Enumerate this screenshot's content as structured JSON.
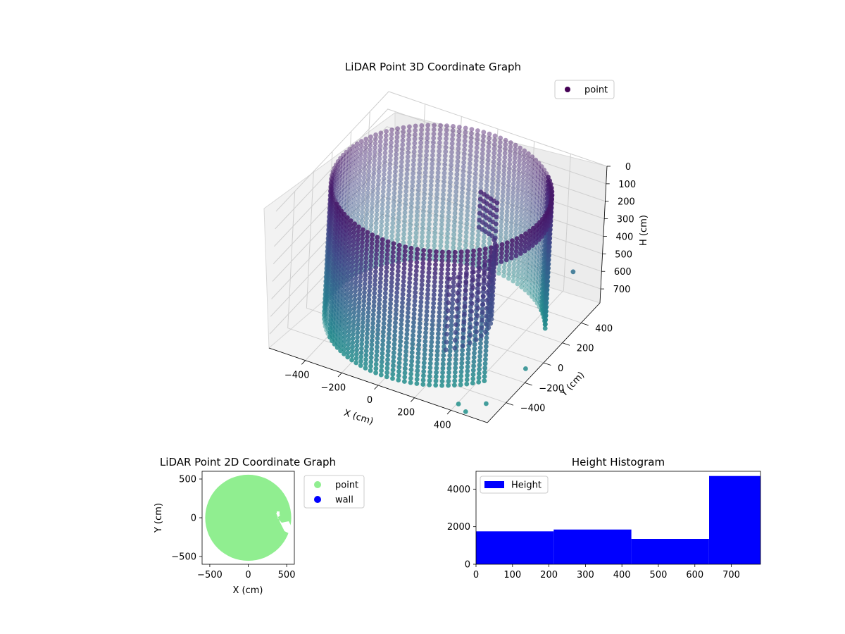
{
  "chart_data": [
    {
      "type": "scatter",
      "projection": "3d",
      "title": "LiDAR Point 3D Coordinate Graph",
      "xlabel": "X (cm)",
      "ylabel": "Y (cm)",
      "zlabel": "H (cm)",
      "xticks": [
        "−400",
        "−200",
        "0",
        "200",
        "400"
      ],
      "yticks": [
        "−400",
        "−200",
        "0",
        "200",
        "400"
      ],
      "zticks": [
        "0",
        "100",
        "200",
        "300",
        "400",
        "500",
        "600",
        "700"
      ],
      "xlim": [
        -600,
        600
      ],
      "ylim": [
        -600,
        600
      ],
      "zlim": [
        0,
        780
      ],
      "z_inverted": true,
      "legend": {
        "entries": [
          "point"
        ],
        "location": "upper right"
      },
      "colormap": "viridis",
      "shape": {
        "description_values": "cylindrical wall of points",
        "radius": 540,
        "height_range": [
          0,
          780
        ],
        "open_gap_angle_deg": [
          -35,
          25
        ],
        "interior_object_points": true
      },
      "outliers": [
        {
          "x": 420,
          "y": -560,
          "h": 760
        },
        {
          "x": 480,
          "y": -600,
          "h": 760
        },
        {
          "x": 560,
          "y": -540,
          "h": 720
        },
        {
          "x": 600,
          "y": -200,
          "h": 700
        },
        {
          "x": 600,
          "y": 280,
          "h": 420
        }
      ]
    },
    {
      "type": "scatter",
      "title": "LiDAR Point 2D Coordinate Graph",
      "xlabel": "X (cm)",
      "ylabel": "Y (cm)",
      "xticks": [
        "−500",
        "0",
        "500"
      ],
      "yticks": [
        "−500",
        "0",
        "500"
      ],
      "xlim": [
        -600,
        600
      ],
      "ylim": [
        -600,
        600
      ],
      "series": [
        {
          "name": "point",
          "color": "#90ee90",
          "shape": "disk",
          "radius": 560,
          "center": [
            0,
            0
          ]
        },
        {
          "name": "wall",
          "color": "#0000ff"
        }
      ],
      "legend": {
        "entries": [
          "point",
          "wall"
        ],
        "location": "outside right"
      }
    },
    {
      "type": "bar",
      "title": "Height Histogram",
      "bin_edges": [
        0,
        213,
        426,
        639,
        780
      ],
      "values": [
        1750,
        1850,
        1350,
        4700
      ],
      "xticks": [
        "0",
        "100",
        "200",
        "300",
        "400",
        "500",
        "600",
        "700"
      ],
      "yticks": [
        "0",
        "2000",
        "4000"
      ],
      "xlim": [
        0,
        780
      ],
      "ylim": [
        0,
        4950
      ],
      "color": "#0000ff",
      "legend": {
        "entries": [
          "Height"
        ],
        "location": "upper left"
      }
    }
  ]
}
